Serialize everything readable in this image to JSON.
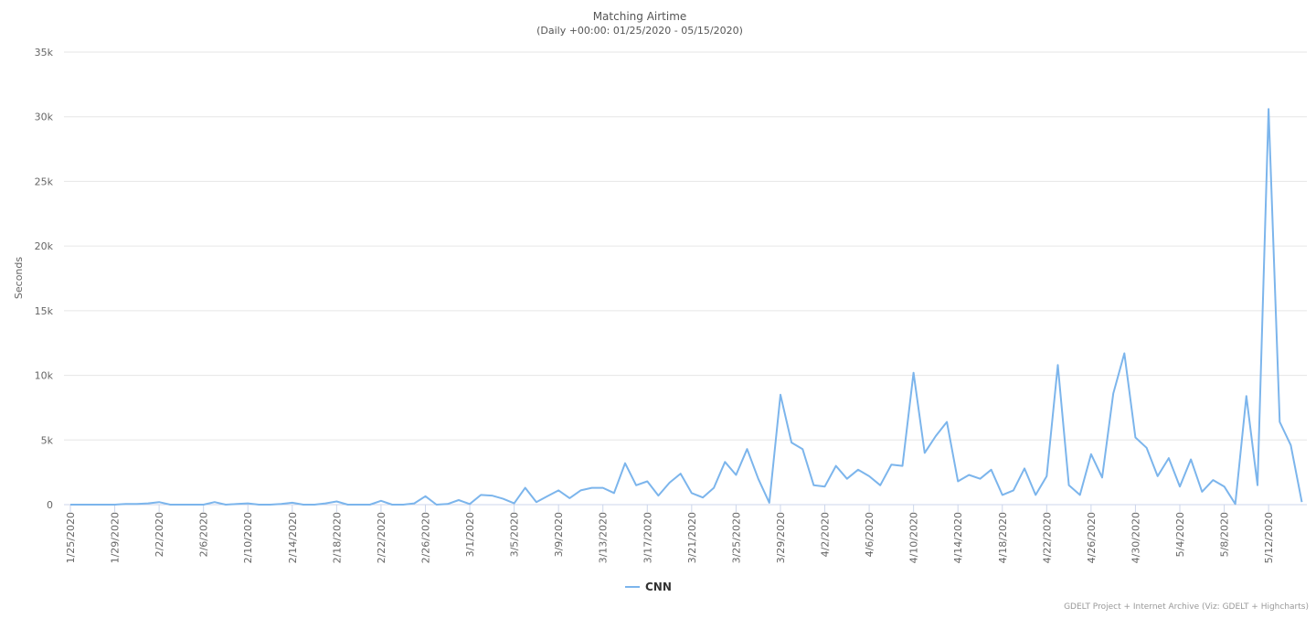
{
  "chart_data": {
    "type": "line",
    "title": "Matching Airtime",
    "subtitle": "(Daily +00:00: 01/25/2020 - 05/15/2020)",
    "y_label": "Seconds",
    "credits": "GDELT Project + Internet Archive (Viz: GDELT + Highcharts)",
    "legend_position": "bottom",
    "grid": true,
    "categories": [
      "1/25/2020",
      null,
      null,
      null,
      "1/29/2020",
      null,
      null,
      null,
      "2/2/2020",
      null,
      null,
      null,
      "2/6/2020",
      null,
      null,
      null,
      "2/10/2020",
      null,
      null,
      null,
      "2/14/2020",
      null,
      null,
      null,
      "2/18/2020",
      null,
      null,
      null,
      "2/22/2020",
      null,
      null,
      null,
      "2/26/2020",
      null,
      null,
      null,
      "3/1/2020",
      null,
      null,
      null,
      "3/5/2020",
      null,
      null,
      null,
      "3/9/2020",
      null,
      null,
      null,
      "3/13/2020",
      null,
      null,
      null,
      "3/17/2020",
      null,
      null,
      null,
      "3/21/2020",
      null,
      null,
      null,
      "3/25/2020",
      null,
      null,
      null,
      "3/29/2020",
      null,
      null,
      null,
      "4/2/2020",
      null,
      null,
      null,
      "4/6/2020",
      null,
      null,
      null,
      "4/10/2020",
      null,
      null,
      null,
      "4/14/2020",
      null,
      null,
      null,
      "4/18/2020",
      null,
      null,
      null,
      "4/22/2020",
      null,
      null,
      null,
      "4/26/2020",
      null,
      null,
      null,
      "4/30/2020",
      null,
      null,
      null,
      "5/4/2020",
      null,
      null,
      null,
      "5/8/2020",
      null,
      null,
      null,
      "5/12/2020",
      null,
      null,
      null
    ],
    "series": [
      {
        "name": "CNN",
        "color": "#7cb5ec",
        "values": [
          0,
          0,
          0,
          0,
          0,
          50,
          50,
          100,
          200,
          0,
          0,
          0,
          0,
          200,
          0,
          50,
          100,
          0,
          0,
          50,
          150,
          0,
          0,
          100,
          250,
          0,
          0,
          0,
          300,
          0,
          0,
          100,
          650,
          0,
          50,
          350,
          50,
          750,
          700,
          450,
          100,
          1300,
          200,
          650,
          1100,
          500,
          1100,
          1300,
          1300,
          900,
          3200,
          1500,
          1800,
          700,
          1700,
          2400,
          900,
          550,
          1300,
          3300,
          2300,
          4300,
          2000,
          150,
          8500,
          4800,
          4300,
          1500,
          1400,
          3000,
          2000,
          2700,
          2200,
          1500,
          3100,
          3000,
          10200,
          4000,
          5300,
          6400,
          1800,
          2300,
          2000,
          2700,
          750,
          1100,
          2800,
          750,
          2200,
          10800,
          1500,
          750,
          3900,
          2100,
          8600,
          11700,
          5200,
          4400,
          2200,
          3600,
          1400,
          3500,
          1000,
          1900,
          1400,
          50,
          8400,
          1500,
          30600,
          6400,
          4600,
          200
        ]
      }
    ],
    "ylim": [
      0,
      35000
    ],
    "yticks": [
      0,
      {
        "value": 5000,
        "label": "5k"
      },
      {
        "value": 10000,
        "label": "10k"
      },
      {
        "value": 15000,
        "label": "15k"
      },
      {
        "value": 20000,
        "label": "20k"
      },
      {
        "value": 25000,
        "label": "25k"
      },
      {
        "value": 30000,
        "label": "30k"
      },
      {
        "value": 35000,
        "label": "35k"
      }
    ]
  }
}
